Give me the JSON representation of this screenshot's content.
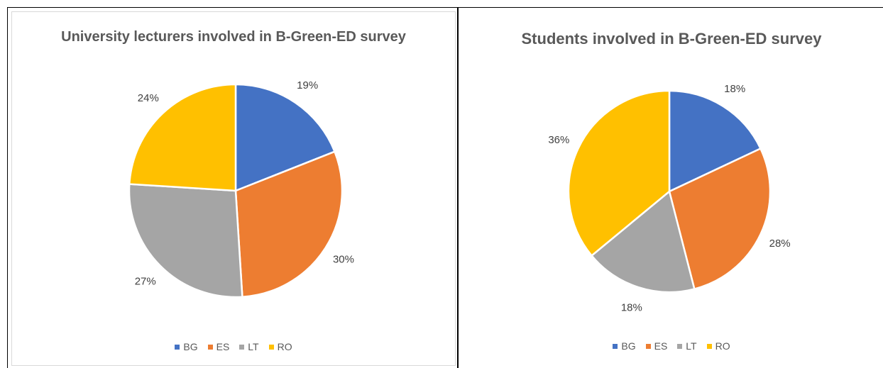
{
  "chart_data": [
    {
      "type": "pie",
      "title": "University lecturers involved in B-Green-ED survey",
      "categories": [
        "BG",
        "ES",
        "LT",
        "RO"
      ],
      "values": [
        19,
        30,
        27,
        24
      ],
      "labels": [
        "19%",
        "30%",
        "27%",
        "24%"
      ],
      "colors": [
        "#4472C4",
        "#ED7D31",
        "#A5A5A5",
        "#FFC000"
      ],
      "legend": "bottom"
    },
    {
      "type": "pie",
      "title": "Students involved in B-Green-ED survey",
      "categories": [
        "BG",
        "ES",
        "LT",
        "RO"
      ],
      "values": [
        18,
        28,
        18,
        36
      ],
      "labels": [
        "18%",
        "28%",
        "18%",
        "36%"
      ],
      "colors": [
        "#4472C4",
        "#ED7D31",
        "#A5A5A5",
        "#FFC000"
      ],
      "legend": "bottom"
    }
  ]
}
